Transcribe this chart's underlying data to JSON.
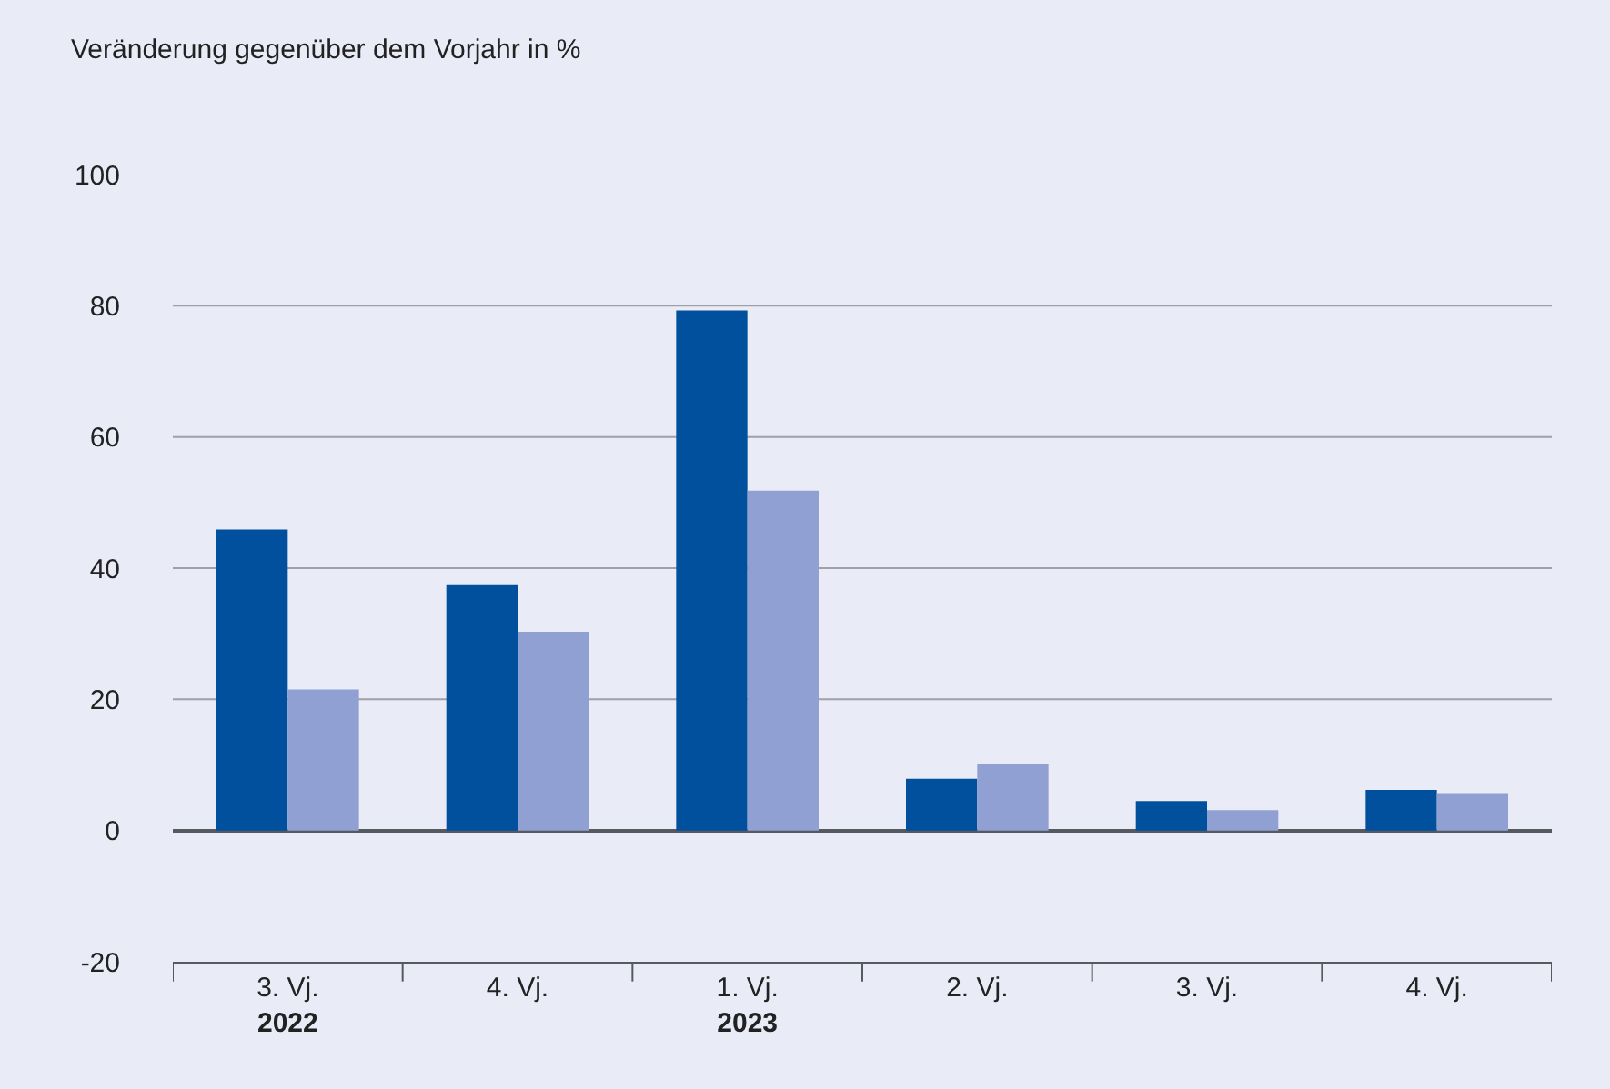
{
  "chart_data": {
    "type": "bar",
    "ylabel": "Veränderung gegenüber dem Vorjahr in %",
    "categories": [
      "3. Vj.\n2022",
      "4. Vj.",
      "1. Vj.\n2023",
      "2. Vj.",
      "3. Vj.",
      "4. Vj."
    ],
    "series": [
      {
        "color": "#00509e",
        "values": [
          45.9,
          37.4,
          79.3,
          7.9,
          4.5,
          6.2
        ]
      },
      {
        "color": "#90a0d2",
        "values": [
          21.5,
          30.3,
          51.8,
          10.2,
          3.1,
          5.7
        ]
      }
    ],
    "ylim": [
      -20,
      100
    ],
    "yticks": [
      -20,
      0,
      20,
      40,
      60,
      80,
      100
    ],
    "grid": "y"
  }
}
